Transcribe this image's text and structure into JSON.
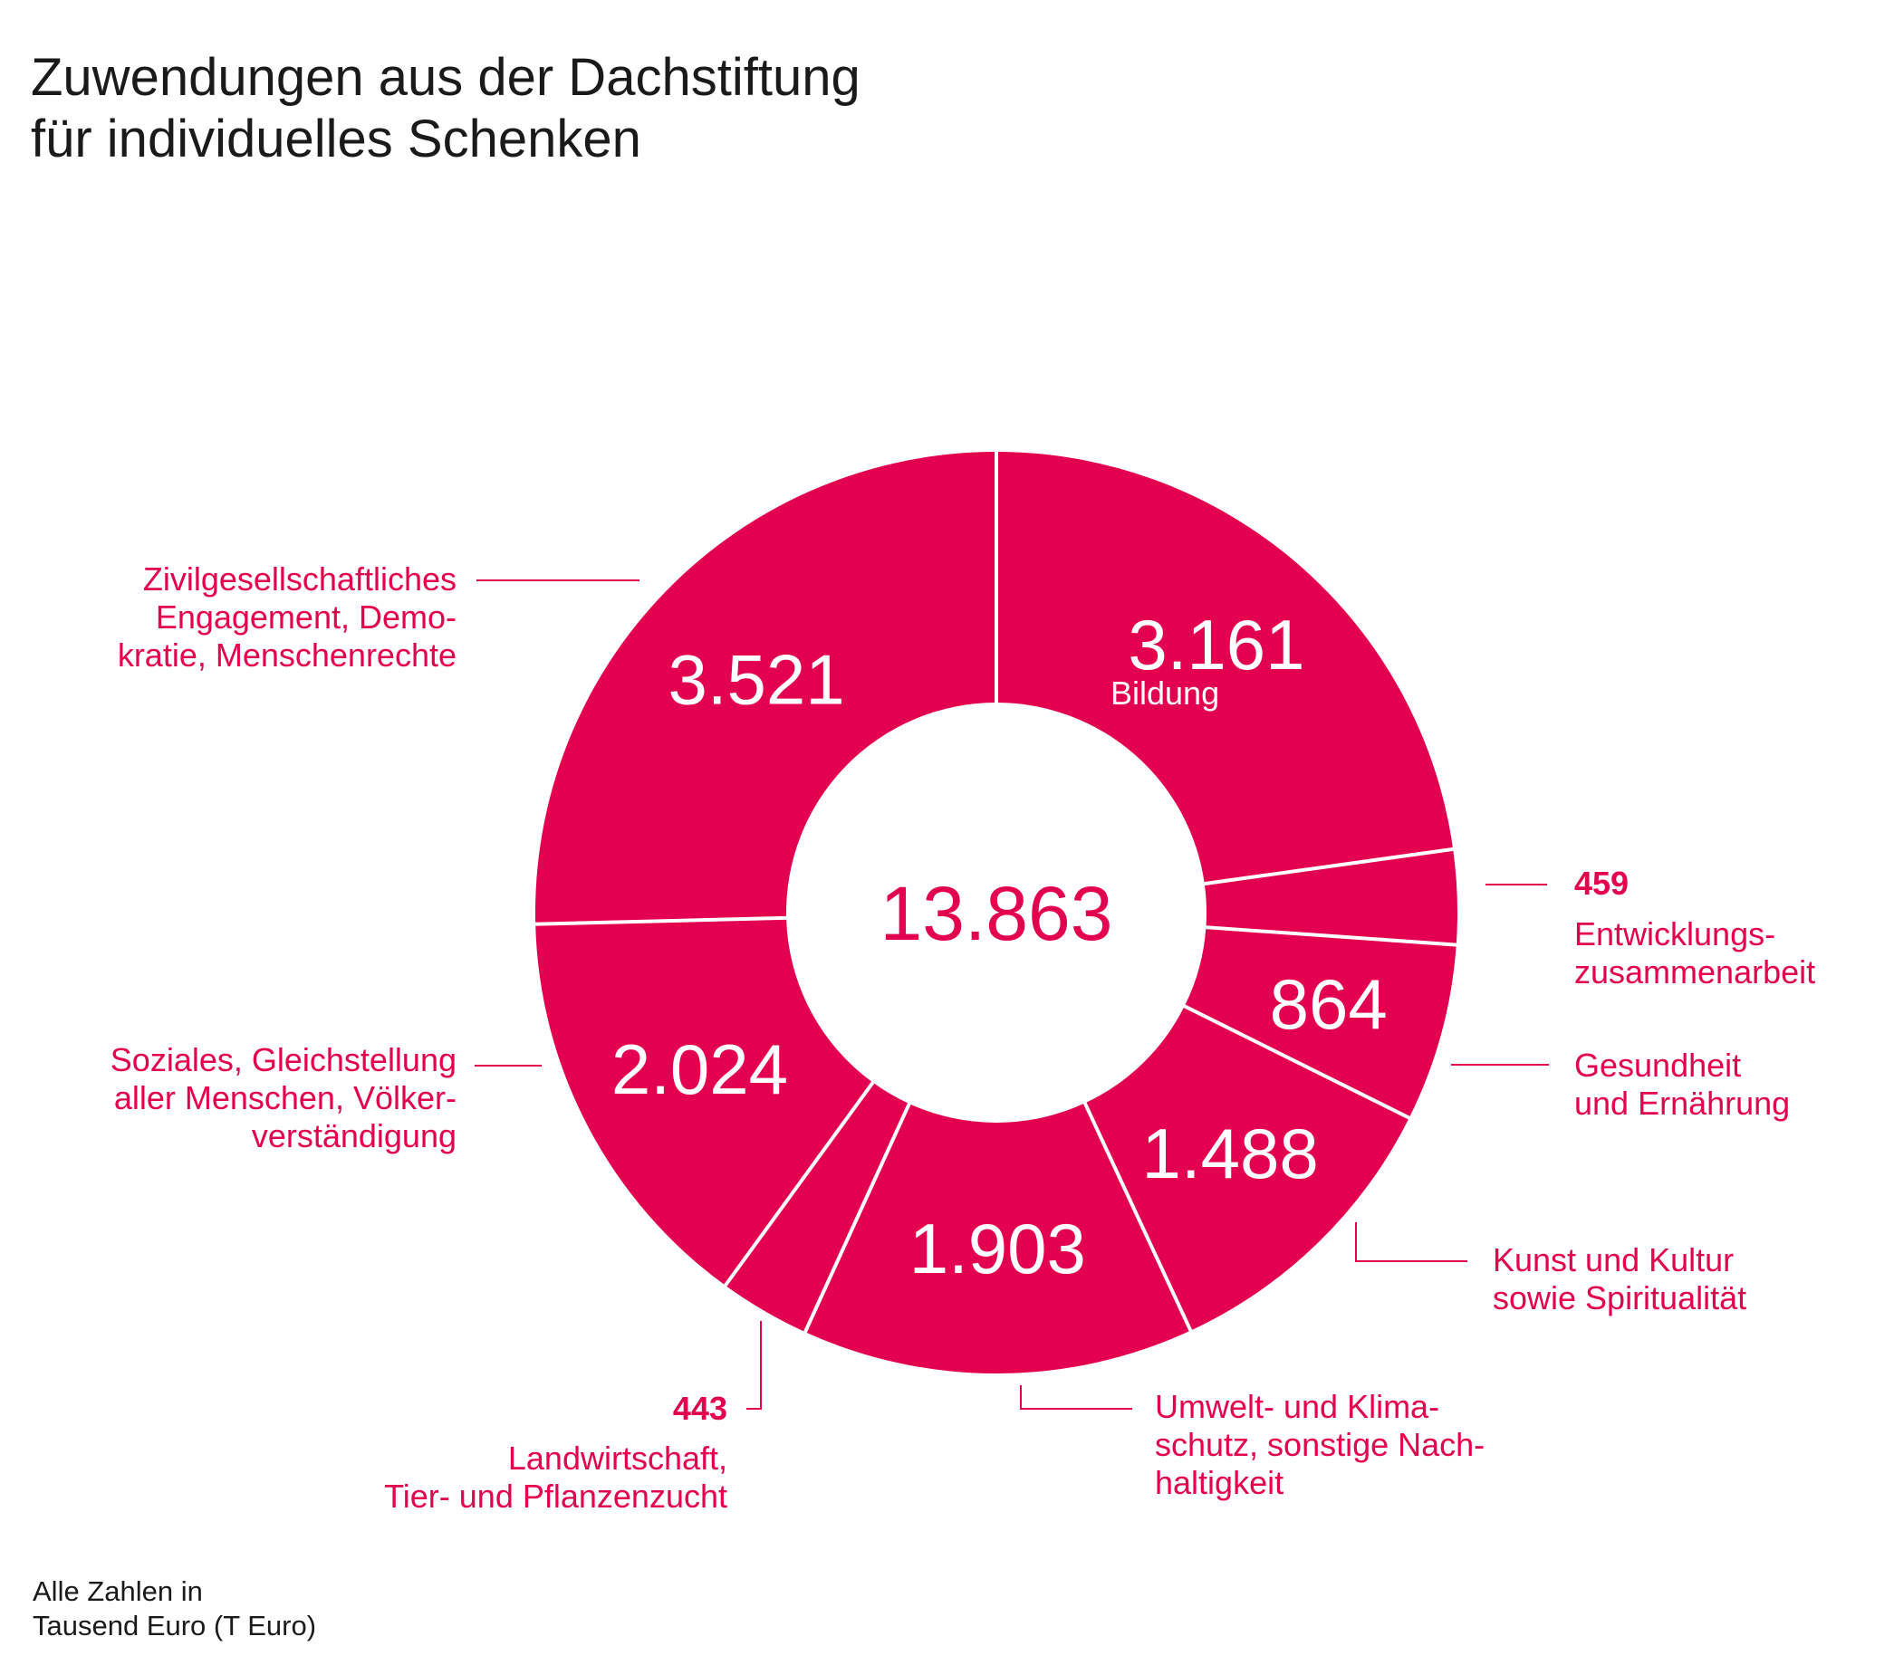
{
  "chart_data": {
    "type": "pie",
    "title": [
      "Zuwendungen aus der Dachstiftung",
      "für individuelles Schenken"
    ],
    "total": "13.863",
    "note": [
      "Alle Zahlen in",
      "Tausend Euro (T Euro)"
    ],
    "colors": {
      "slice": "#e2004f",
      "label": "#e2004f",
      "separator": "#ffffff",
      "title": "#1a1a1a"
    },
    "slices": [
      {
        "value": 3161,
        "display": "3.161",
        "label": [
          "Bildung"
        ]
      },
      {
        "value": 459,
        "display": "459",
        "label": [
          "Entwicklungs-",
          "zusammenarbeit"
        ]
      },
      {
        "value": 864,
        "display": "864",
        "label": [
          "Gesundheit",
          "und Ernährung"
        ]
      },
      {
        "value": 1488,
        "display": "1.488",
        "label": [
          "Kunst und Kultur",
          "sowie Spiritualität"
        ]
      },
      {
        "value": 1903,
        "display": "1.903",
        "label": [
          "Umwelt- und Klima-",
          "schutz, sonstige Nach-",
          "haltigkeit"
        ]
      },
      {
        "value": 443,
        "display": "443",
        "label": [
          "Landwirtschaft,",
          "Tier- und Pflanzenzucht"
        ]
      },
      {
        "value": 2024,
        "display": "2.024",
        "label": [
          "Soziales, Gleichstellung",
          "aller Menschen, Völker-",
          "verständigung"
        ]
      },
      {
        "value": 3521,
        "display": "3.521",
        "label": [
          "Zivilgesellschaftliches",
          "Engagement, Demo-",
          "kratie, Menschenrechte"
        ]
      }
    ]
  }
}
